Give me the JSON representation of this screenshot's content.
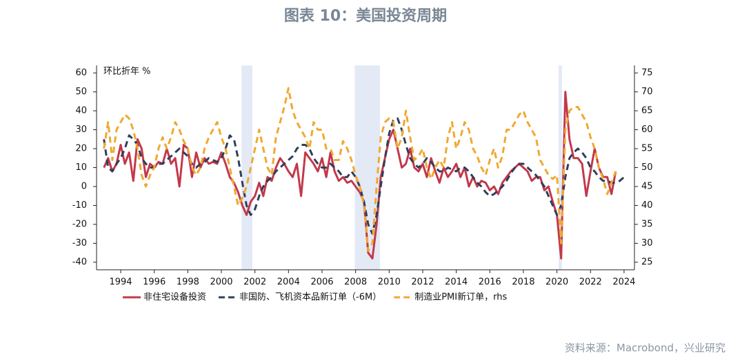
{
  "chart_data": {
    "type": "line",
    "title": "图表 10：美国投资周期",
    "y_label": "环比折年 %",
    "source": "资料来源：Macrobond，兴业研究",
    "x": [
      1993,
      1993.25,
      1993.5,
      1993.75,
      1994,
      1994.25,
      1994.5,
      1994.75,
      1995,
      1995.25,
      1995.5,
      1995.75,
      1996,
      1996.25,
      1996.5,
      1996.75,
      1997,
      1997.25,
      1997.5,
      1997.75,
      1998,
      1998.25,
      1998.5,
      1998.75,
      1999,
      1999.25,
      1999.5,
      1999.75,
      2000,
      2000.25,
      2000.5,
      2000.75,
      2001,
      2001.25,
      2001.5,
      2001.75,
      2002,
      2002.25,
      2002.5,
      2002.75,
      2003,
      2003.25,
      2003.5,
      2003.75,
      2004,
      2004.25,
      2004.5,
      2004.75,
      2005,
      2005.25,
      2005.5,
      2005.75,
      2006,
      2006.25,
      2006.5,
      2006.75,
      2007,
      2007.25,
      2007.5,
      2007.75,
      2008,
      2008.25,
      2008.5,
      2008.75,
      2009,
      2009.25,
      2009.5,
      2009.75,
      2010,
      2010.25,
      2010.5,
      2010.75,
      2011,
      2011.25,
      2011.5,
      2011.75,
      2012,
      2012.25,
      2012.5,
      2012.75,
      2013,
      2013.25,
      2013.5,
      2013.75,
      2014,
      2014.25,
      2014.5,
      2014.75,
      2015,
      2015.25,
      2015.5,
      2015.75,
      2016,
      2016.25,
      2016.5,
      2016.75,
      2017,
      2017.25,
      2017.5,
      2017.75,
      2018,
      2018.25,
      2018.5,
      2018.75,
      2019,
      2019.25,
      2019.5,
      2019.75,
      2020,
      2020.25,
      2020.5,
      2020.75,
      2021,
      2021.25,
      2021.5,
      2021.75,
      2022,
      2022.25,
      2022.5,
      2022.75,
      2023,
      2023.25,
      2023.5,
      2023.75,
      2024
    ],
    "series": [
      {
        "name": "非住宅设备投资",
        "color": "#c3384b",
        "dash": false,
        "axis": "y",
        "values": [
          10,
          15,
          8,
          12,
          22,
          12,
          18,
          3,
          25,
          20,
          5,
          12,
          10,
          13,
          12,
          20,
          12,
          15,
          0,
          22,
          20,
          5,
          18,
          10,
          15,
          12,
          13,
          12,
          18,
          12,
          5,
          2,
          -3,
          -10,
          -15,
          -8,
          -5,
          2,
          -5,
          5,
          3,
          10,
          15,
          12,
          8,
          5,
          12,
          -5,
          18,
          15,
          12,
          8,
          15,
          5,
          18,
          8,
          3,
          5,
          2,
          3,
          0,
          -3,
          -8,
          -35,
          -38,
          -20,
          5,
          15,
          25,
          30,
          20,
          10,
          12,
          20,
          10,
          8,
          12,
          5,
          15,
          8,
          2,
          10,
          5,
          8,
          12,
          5,
          10,
          0,
          5,
          0,
          3,
          2,
          -2,
          0,
          -4,
          2,
          5,
          8,
          10,
          12,
          10,
          8,
          3,
          5,
          5,
          -2,
          0,
          -8,
          -15,
          -38,
          50,
          25,
          15,
          15,
          12,
          -5,
          8,
          20,
          10,
          5,
          5,
          -4,
          8,
          null,
          null
        ]
      },
      {
        "name": "非国防、飞机资本品新订单（-6M）",
        "color": "#2f3f5a",
        "dash": true,
        "axis": "y",
        "values": [
          25,
          10,
          8,
          12,
          15,
          20,
          27,
          25,
          22,
          15,
          12,
          10,
          10,
          12,
          12,
          14,
          16,
          18,
          20,
          18,
          16,
          12,
          10,
          12,
          13,
          15,
          14,
          13,
          15,
          20,
          27,
          25,
          15,
          2,
          -10,
          -15,
          -12,
          -5,
          0,
          3,
          5,
          8,
          10,
          12,
          14,
          16,
          20,
          22,
          22,
          20,
          15,
          12,
          10,
          10,
          12,
          10,
          8,
          5,
          5,
          8,
          5,
          0,
          -8,
          -20,
          -25,
          -15,
          0,
          15,
          28,
          35,
          36,
          30,
          22,
          15,
          12,
          10,
          12,
          15,
          13,
          10,
          8,
          8,
          10,
          9,
          8,
          10,
          10,
          8,
          5,
          2,
          0,
          -3,
          -5,
          -4,
          -2,
          0,
          3,
          7,
          10,
          12,
          12,
          10,
          8,
          6,
          3,
          0,
          -5,
          -10,
          -15,
          -10,
          5,
          15,
          18,
          20,
          18,
          15,
          10,
          8,
          5,
          3,
          3,
          2,
          2,
          3,
          5
        ]
      },
      {
        "name": "制造业PMI新订单，rhs",
        "color": "#f0a92e",
        "dash": true,
        "axis": "y2",
        "values": [
          55,
          62,
          52,
          60,
          62,
          64,
          63,
          60,
          55,
          48,
          45,
          48,
          50,
          55,
          58,
          55,
          58,
          62,
          60,
          57,
          55,
          50,
          48,
          50,
          55,
          58,
          60,
          62,
          58,
          55,
          50,
          45,
          40,
          42,
          45,
          50,
          55,
          60,
          55,
          50,
          48,
          58,
          62,
          66,
          71,
          65,
          62,
          60,
          58,
          55,
          62,
          60,
          60,
          55,
          55,
          52,
          52,
          57,
          55,
          52,
          48,
          45,
          40,
          28,
          30,
          45,
          58,
          62,
          63,
          62,
          55,
          58,
          65,
          58,
          52,
          53,
          55,
          50,
          47,
          50,
          52,
          50,
          58,
          62,
          55,
          58,
          62,
          60,
          55,
          53,
          50,
          48,
          52,
          55,
          50,
          53,
          60,
          60,
          62,
          64,
          65,
          62,
          60,
          58,
          52,
          50,
          48,
          47,
          48,
          30,
          60,
          65,
          66,
          66,
          64,
          62,
          58,
          55,
          50,
          47,
          43,
          46,
          49,
          null,
          null
        ]
      }
    ],
    "shaded_periods": [
      [
        2001.2,
        2001.85
      ],
      [
        2007.95,
        2009.45
      ],
      [
        2020.1,
        2020.3
      ]
    ],
    "shade_color": "#e3eaf6",
    "xlim": [
      1992.56,
      2024.62
    ],
    "xticks": [
      1994,
      1996,
      1998,
      2000,
      2002,
      2004,
      2006,
      2008,
      2010,
      2012,
      2014,
      2016,
      2018,
      2020,
      2022,
      2024
    ],
    "ylim": [
      -44,
      64
    ],
    "yticks": [
      -40,
      -30,
      -20,
      -10,
      0,
      10,
      20,
      30,
      40,
      50,
      60
    ],
    "y2lim": [
      23,
      77
    ],
    "y2ticks": [
      25,
      30,
      35,
      40,
      45,
      50,
      55,
      60,
      65,
      70,
      75
    ]
  }
}
